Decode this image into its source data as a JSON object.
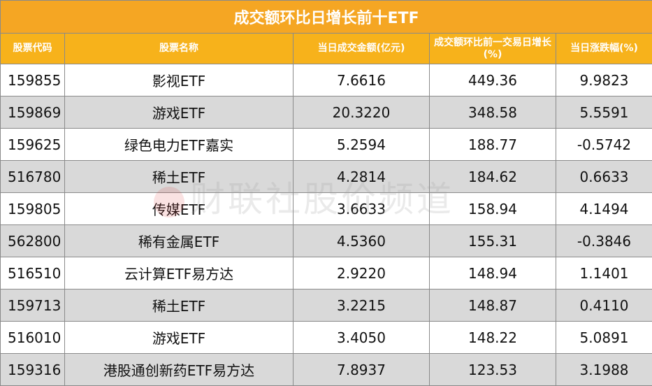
{
  "title": "成交额环比日增长前十ETF",
  "headers": [
    "股票代码",
    "股票名称",
    "当日成交金额(亿元)",
    "成交额环比前一交易日增长(%)",
    "当日涨跌幅(%)"
  ],
  "rows": [
    {
      "code": "159855",
      "name": "影视ETF",
      "amount": "7.6616",
      "growth": "449.36",
      "change": "9.9823"
    },
    {
      "code": "159869",
      "name": "游戏ETF",
      "amount": "20.3220",
      "growth": "348.58",
      "change": "5.5591"
    },
    {
      "code": "159625",
      "name": "绿色电力ETF嘉实",
      "amount": "5.2594",
      "growth": "188.77",
      "change": "-0.5742"
    },
    {
      "code": "516780",
      "name": "稀土ETF",
      "amount": "4.2814",
      "growth": "184.62",
      "change": "0.6633"
    },
    {
      "code": "159805",
      "name": "传媒ETF",
      "amount": "3.6633",
      "growth": "158.94",
      "change": "4.1494"
    },
    {
      "code": "562800",
      "name": "稀有金属ETF",
      "amount": "4.5360",
      "growth": "155.31",
      "change": "-0.3846"
    },
    {
      "code": "516510",
      "name": "云计算ETF易方达",
      "amount": "2.9220",
      "growth": "148.94",
      "change": "1.1401"
    },
    {
      "code": "159713",
      "name": "稀土ETF",
      "amount": "3.2215",
      "growth": "148.87",
      "change": "0.4110"
    },
    {
      "code": "516010",
      "name": "游戏ETF",
      "amount": "3.4050",
      "growth": "148.22",
      "change": "5.0891"
    },
    {
      "code": "159316",
      "name": "港股通创新药ETF易方达",
      "amount": "7.8937",
      "growth": "123.53",
      "change": "3.1988"
    }
  ],
  "watermark": "财联社股价频道",
  "colors": {
    "header": "#f5a623",
    "alt_row": "#d9d9d9"
  }
}
